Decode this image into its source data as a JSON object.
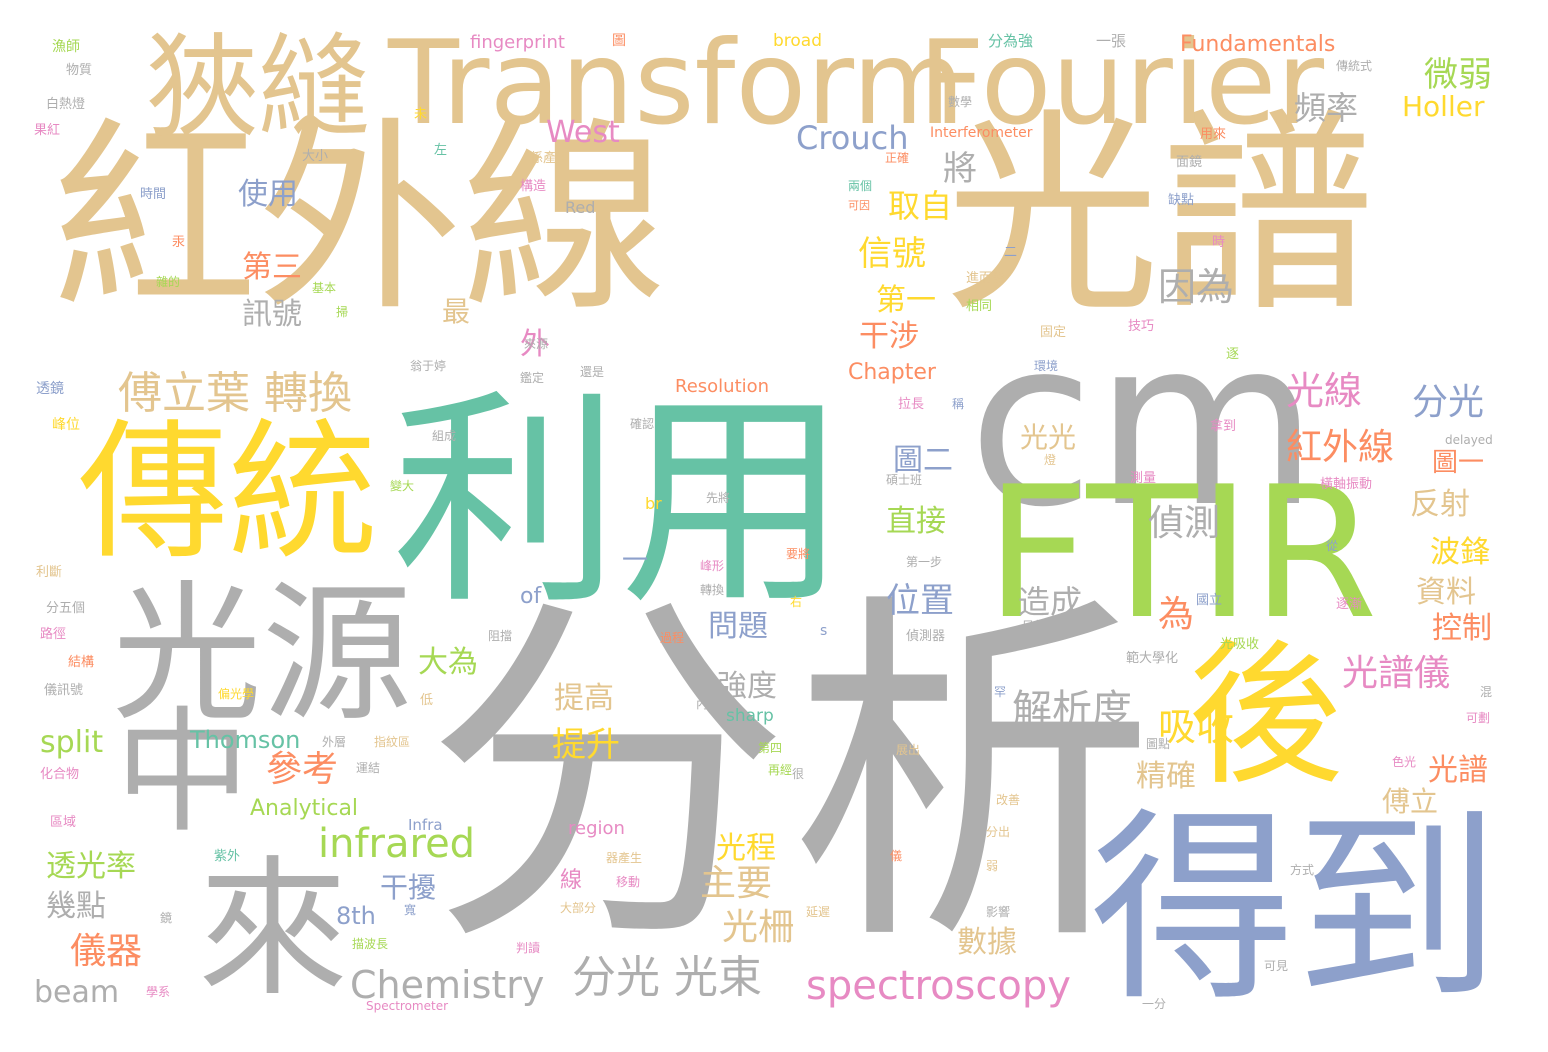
{
  "title": "",
  "palette": {
    "tan": "#e3c58f",
    "gray": "#aeaeae",
    "green": "#66c2a5",
    "lime": "#a6d854",
    "yellow": "#ffd92f",
    "blue": "#8da0cb",
    "pink": "#e78ac3",
    "orange": "#fc8d62"
  },
  "words": [
    "紅外線",
    "光譜",
    "分析",
    "利用",
    "cm",
    "FTIR",
    "傳統",
    "得到",
    "後",
    "光源",
    "中",
    "來",
    "狹縫",
    "Transform",
    "Fourier",
    "傅立葉 轉換",
    "分光 光束",
    "spectroscopy",
    "Chemistry",
    "infrared",
    "解析度",
    "微弱",
    "頻率",
    "Holler",
    "West",
    "Crouch",
    "將",
    "使用",
    "取自",
    "信號",
    "因為",
    "第三",
    "訊號",
    "第一",
    "最",
    "干涉",
    "外",
    "光線",
    "紅外線",
    "分光",
    "偵測",
    "圖二",
    "光光",
    "直接",
    "位置",
    "為",
    "反射",
    "圖一",
    "波鋒",
    "資料",
    "造成",
    "問題",
    "控制",
    "光譜儀",
    "大為",
    "強度",
    "提高",
    "吸收",
    "提升",
    "參考",
    "split",
    "Thomson",
    "Analytical",
    "透光率",
    "幾點",
    "干擾",
    "主要",
    "光程",
    "精確",
    "光譜",
    "傅立",
    "儀器",
    "8th",
    "線",
    "光柵",
    "數據",
    "beam",
    "of",
    "Fundamentals",
    "Chapter",
    "Resolution",
    "fingerprint",
    "broad",
    "region",
    "sharp",
    "Infra",
    "Red",
    "Interferometer",
    "Spectrometer",
    "delayed",
    "br",
    "s",
    "一",
    "分為強",
    "一張",
    "傳統式",
    "漁師",
    "物質",
    "白熱燈",
    "果紅",
    "大小",
    "時間",
    "汞",
    "雜的",
    "基本",
    "掃",
    "透鏡",
    "峰位",
    "利斷",
    "分五個",
    "路徑",
    "結構",
    "儀訊號",
    "化合物",
    "區域",
    "紫外",
    "學系",
    "圖",
    "數學",
    "未",
    "左",
    "係產生",
    "構造",
    "正確",
    "兩個",
    "可因",
    "用來",
    "面鏡",
    "缺點",
    "時",
    "二",
    "進而發",
    "相同",
    "固定",
    "技巧",
    "逐",
    "環境",
    "稱",
    "拉長",
    "燈",
    "碩士班",
    "拿到",
    "測量",
    "橫軸振動",
    "從",
    "逐漸",
    "國立",
    "目的",
    "偵測器",
    "範大學化",
    "光吸收",
    "混",
    "可劃",
    "色光",
    "方式",
    "可見",
    "一分",
    "影響",
    "弱",
    "分出",
    "儀",
    "改善",
    "展出",
    "圖點",
    "罕",
    "很",
    "再經",
    "第四",
    "內",
    "低",
    "外層",
    "指紋區",
    "運結",
    "阻擋",
    "過程",
    "移動",
    "器產生",
    "大部分",
    "延遲",
    "判讀",
    "描波長",
    "寬",
    "鏡",
    "確認",
    "組成",
    "變大",
    "先將",
    "要將",
    "第一步",
    "峰形",
    "轉換",
    "右",
    "鑑定",
    "還是",
    "來源",
    "翁于婷",
    "偏光學"
  ]
}
